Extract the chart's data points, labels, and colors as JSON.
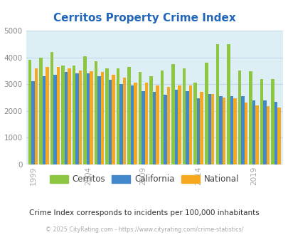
{
  "title": "Cerritos Property Crime Index",
  "title_color": "#2266bb",
  "subtitle": "Crime Index corresponds to incidents per 100,000 inhabitants",
  "footer": "© 2025 CityRating.com - https://www.cityrating.com/crime-statistics/",
  "years": [
    1999,
    2000,
    2001,
    2002,
    2003,
    2004,
    2005,
    2006,
    2007,
    2008,
    2009,
    2010,
    2011,
    2012,
    2013,
    2014,
    2015,
    2016,
    2017,
    2018,
    2019,
    2020,
    2021
  ],
  "cerritos": [
    3900,
    4000,
    4200,
    3700,
    3700,
    4050,
    3850,
    3600,
    3600,
    3650,
    3450,
    3300,
    3500,
    3750,
    3600,
    3050,
    3800,
    4500,
    4480,
    3500,
    3480,
    3200,
    3200
  ],
  "california": [
    3100,
    3300,
    3350,
    3450,
    3400,
    3400,
    3300,
    3150,
    3000,
    2950,
    2750,
    2700,
    2600,
    2800,
    2750,
    2480,
    2620,
    2550,
    2550,
    2550,
    2400,
    2380,
    2330
  ],
  "national": [
    3580,
    3650,
    3650,
    3600,
    3500,
    3490,
    3450,
    3350,
    3250,
    3050,
    3050,
    2950,
    2900,
    2950,
    2950,
    2700,
    2620,
    2490,
    2460,
    2310,
    2210,
    2180,
    2130
  ],
  "cerritos_color": "#8DC641",
  "california_color": "#4488CC",
  "national_color": "#F5A820",
  "bg_color": "#deeef5",
  "ylim": [
    0,
    5000
  ],
  "yticks": [
    0,
    1000,
    2000,
    3000,
    4000,
    5000
  ],
  "x_label_years": [
    1999,
    2004,
    2009,
    2014,
    2019
  ],
  "grid_color": "#c0d8e8",
  "legend_labels": [
    "Cerritos",
    "California",
    "National"
  ]
}
